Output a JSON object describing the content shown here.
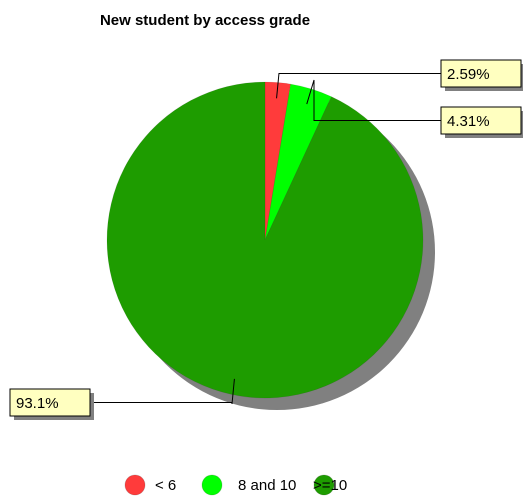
{
  "chart_data": {
    "type": "pie",
    "title": "New student by access grade",
    "slices": [
      {
        "name": "< 6",
        "value": 2.59,
        "label": "2.59%",
        "color": "#ff3b3b"
      },
      {
        "name": "8 and 10",
        "value": 4.31,
        "label": "4.31%",
        "color": "#00ff00"
      },
      {
        "name": ">=10",
        "value": 93.1,
        "label": "93.1%",
        "color": "#1e9c00"
      }
    ],
    "shadow_color": "#808080",
    "label_box_color": "#ffffc0",
    "legend_position": "bottom"
  }
}
